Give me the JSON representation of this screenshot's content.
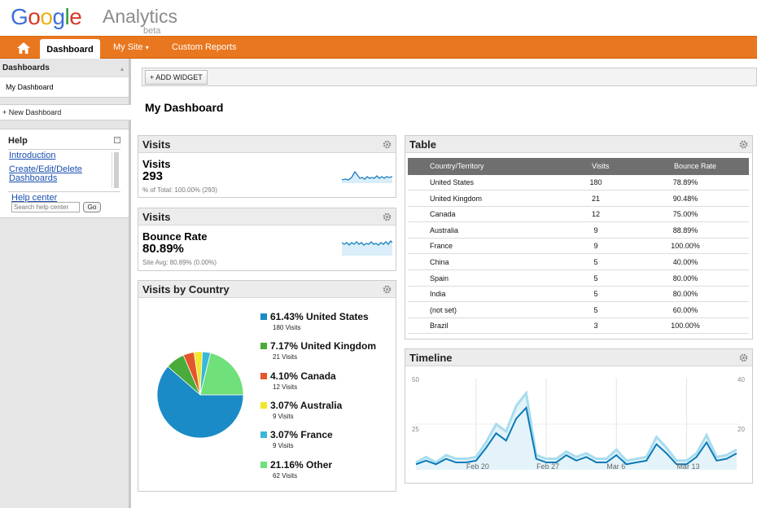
{
  "logo": {
    "letters": [
      "G",
      "o",
      "o",
      "g",
      "l",
      "e"
    ],
    "analytics": "Analytics",
    "beta": "beta"
  },
  "nav": {
    "home_icon": "home-icon",
    "dashboard": "Dashboard",
    "my_site": "My Site",
    "my_site_caret": "▾",
    "custom_reports": "Custom Reports"
  },
  "sidebar": {
    "dashboards_title": "Dashboards",
    "collapse_glyph": "▴",
    "my_dashboard": "My Dashboard",
    "new_dashboard": "+ New Dashboard",
    "help_title": "Help",
    "help_toggle": "−",
    "links": [
      "Introduction",
      "Create/Edit/Delete",
      "Dashboards"
    ],
    "help_center": "Help center",
    "search_placeholder": "Search help center",
    "go": "Go"
  },
  "main": {
    "add_widget": "+ ADD WIDGET",
    "title": "My Dashboard"
  },
  "visits_widget": {
    "header": "Visits",
    "name": "Visits",
    "value": "293",
    "sub": "% of Total: 100.00% (293)"
  },
  "bounce_widget": {
    "header": "Visits",
    "name": "Bounce Rate",
    "value": "80.89%",
    "sub": "Site Avg: 80.89% (0.00%)"
  },
  "country_widget": {
    "header": "Visits by Country",
    "items": [
      {
        "label": "61.43% United States",
        "sub": "180 Visits",
        "color": "#1a8bc7",
        "pct": 61.43
      },
      {
        "label": "7.17% United Kingdom",
        "sub": "21 Visits",
        "color": "#4aaa3a",
        "pct": 7.17
      },
      {
        "label": "4.10% Canada",
        "sub": "12 Visits",
        "color": "#e4562a",
        "pct": 4.1
      },
      {
        "label": "3.07% Australia",
        "sub": "9 Visits",
        "color": "#f2e62a",
        "pct": 3.07
      },
      {
        "label": "3.07% France",
        "sub": "9 Visits",
        "color": "#3ab8d8",
        "pct": 3.07
      },
      {
        "label": "21.16% Other",
        "sub": "62 Visits",
        "color": "#6fe07a",
        "pct": 21.16
      }
    ]
  },
  "table_widget": {
    "header": "Table",
    "columns": [
      "Country/Territory",
      "Visits",
      "Bounce Rate"
    ],
    "rows": [
      [
        "United States",
        "180",
        "78.89%"
      ],
      [
        "United Kingdom",
        "21",
        "90.48%"
      ],
      [
        "Canada",
        "12",
        "75.00%"
      ],
      [
        "Australia",
        "9",
        "88.89%"
      ],
      [
        "France",
        "9",
        "100.00%"
      ],
      [
        "China",
        "5",
        "40.00%"
      ],
      [
        "Spain",
        "5",
        "80.00%"
      ],
      [
        "India",
        "5",
        "80.00%"
      ],
      [
        "(not set)",
        "5",
        "60.00%"
      ],
      [
        "Brazil",
        "3",
        "100.00%"
      ]
    ]
  },
  "timeline_widget": {
    "header": "Timeline",
    "left_axis": [
      "50",
      "25"
    ],
    "right_axis": [
      "40",
      "20"
    ],
    "x_labels": [
      "Feb 20",
      "Feb 27",
      "Mar 6",
      "Mar 13"
    ]
  },
  "colors": {
    "nav_orange": "#e9771f",
    "series_dark": "#0a7ab8",
    "series_light": "#a8dcef"
  },
  "chart_data": [
    {
      "type": "pie",
      "categories": [
        "United States",
        "United Kingdom",
        "Canada",
        "Australia",
        "France",
        "Other"
      ],
      "values": [
        61.43,
        7.17,
        4.1,
        3.07,
        3.07,
        21.16
      ]
    },
    {
      "type": "line",
      "x": [
        "Feb 14",
        "Feb 15",
        "Feb 16",
        "Feb 17",
        "Feb 18",
        "Feb 19",
        "Feb 20",
        "Feb 21",
        "Feb 22",
        "Feb 23",
        "Feb 24",
        "Feb 25",
        "Feb 26",
        "Feb 27",
        "Feb 28",
        "Mar 1",
        "Mar 2",
        "Mar 3",
        "Mar 4",
        "Mar 5",
        "Mar 6",
        "Mar 7",
        "Mar 8",
        "Mar 9",
        "Mar 10",
        "Mar 11",
        "Mar 12",
        "Mar 13",
        "Mar 14",
        "Mar 15",
        "Mar 16",
        "Mar 17",
        "Mar 18"
      ],
      "series": [
        {
          "values": [
            3,
            5,
            3,
            6,
            4,
            4,
            5,
            12,
            20,
            16,
            28,
            34,
            6,
            4,
            4,
            8,
            5,
            7,
            4,
            4,
            8,
            3,
            4,
            5,
            14,
            9,
            3,
            3,
            7,
            15,
            5,
            6,
            9
          ]
        },
        {
          "values": [
            4,
            7,
            4,
            8,
            6,
            6,
            7,
            15,
            25,
            21,
            35,
            42,
            8,
            6,
            6,
            10,
            7,
            9,
            6,
            6,
            11,
            5,
            6,
            7,
            18,
            12,
            5,
            5,
            9,
            19,
            7,
            8,
            11
          ]
        }
      ],
      "ylim": [
        0,
        50
      ]
    }
  ]
}
